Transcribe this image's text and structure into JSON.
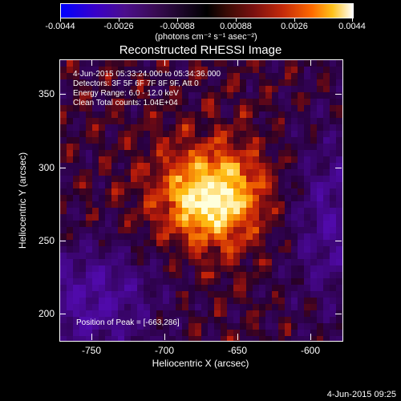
{
  "colorbar": {
    "ticks": [
      "-0.0044",
      "-0.0026",
      "-0.00088",
      "0.00088",
      "0.0026",
      "0.0044"
    ],
    "units": "(photons cm⁻² s⁻¹ asec⁻²)"
  },
  "title": "Reconstructed RHESSI Image",
  "info": {
    "time": "4-Jun-2015 05:33:24.000 to 05:34:36.000",
    "detectors": "Detectors: 3F 5F 6F 7F 8F 9F, Att 0",
    "energy": "Energy Range: 6.0 - 12.0 keV",
    "method": "Clean     Total counts: 1.04E+04",
    "peak": "Position of Peak = [-663,286]"
  },
  "axes": {
    "xlabel": "Heliocentric X (arcsec)",
    "ylabel": "Heliocentric Y (arcsec)",
    "xticks": [
      "-750",
      "-700",
      "-650",
      "-600"
    ],
    "yticks": [
      "350",
      "300",
      "250",
      "200"
    ]
  },
  "datestamp": "4-Jun-2015 09:25"
}
